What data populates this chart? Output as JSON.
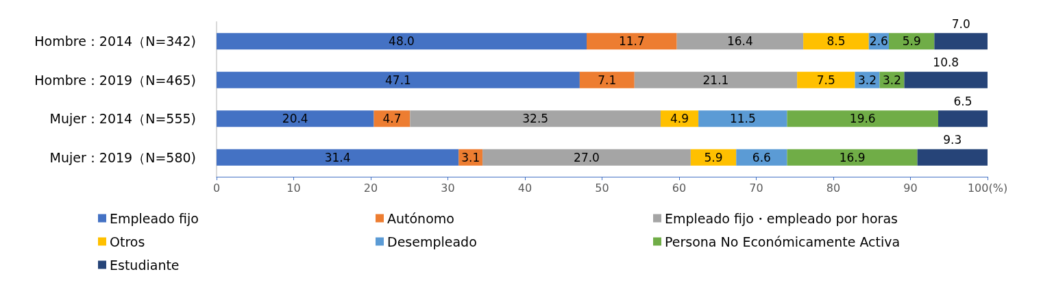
{
  "chart_data": {
    "type": "bar",
    "orientation": "horizontal",
    "stacked": true,
    "grid": false,
    "legend": "bottom",
    "categories": [
      "Hombre：2014（N=342)",
      "Hombre：2019（N=465)",
      "Mujer：2014（N=555)",
      "Mujer：2019（N=580)"
    ],
    "xlim": [
      0,
      100
    ],
    "xticks": [
      0,
      10,
      20,
      30,
      40,
      50,
      60,
      70,
      80,
      90,
      {
        "value": 100,
        "label": "100(%)"
      }
    ],
    "series": [
      {
        "name": "Empleado fijo",
        "color": "#4472c4",
        "values": [
          48.0,
          47.1,
          20.4,
          31.4
        ],
        "value_labels": [
          "48.0",
          "47.1",
          "20.4",
          "31.4"
        ]
      },
      {
        "name": "Autónomo",
        "color": "#ed7d31",
        "values": [
          11.7,
          7.1,
          4.7,
          3.1
        ],
        "value_labels": [
          "11.7",
          "7.1",
          "4.7",
          "3.1"
        ]
      },
      {
        "name": "Empleado fijo・empleado por horas",
        "color": "#a5a5a5",
        "values": [
          16.4,
          21.1,
          32.5,
          27.0
        ],
        "value_labels": [
          "16.4",
          "21.1",
          "32.5",
          "27.0"
        ]
      },
      {
        "name": "Otros",
        "color": "#ffc000",
        "values": [
          8.5,
          7.5,
          4.9,
          5.9
        ],
        "value_labels": [
          "8.5",
          "7.5",
          "4.9",
          "5.9"
        ]
      },
      {
        "name": "Desempleado",
        "color": "#5b9bd5",
        "values": [
          2.6,
          3.2,
          11.5,
          6.6
        ],
        "value_labels": [
          "2.6",
          "3.2",
          "11.5",
          "6.6"
        ]
      },
      {
        "name": "Persona No Económicamente Activa",
        "color": "#70ad47",
        "values": [
          5.9,
          3.2,
          19.6,
          16.9
        ],
        "value_labels": [
          "5.9",
          "3.2",
          "19.6",
          "16.9"
        ]
      },
      {
        "name": "Estudiante",
        "color": "#264478",
        "values": [
          7.0,
          10.8,
          6.5,
          9.3
        ],
        "value_labels": [
          "7.0",
          "10.8",
          "6.5",
          "9.3"
        ]
      }
    ]
  }
}
